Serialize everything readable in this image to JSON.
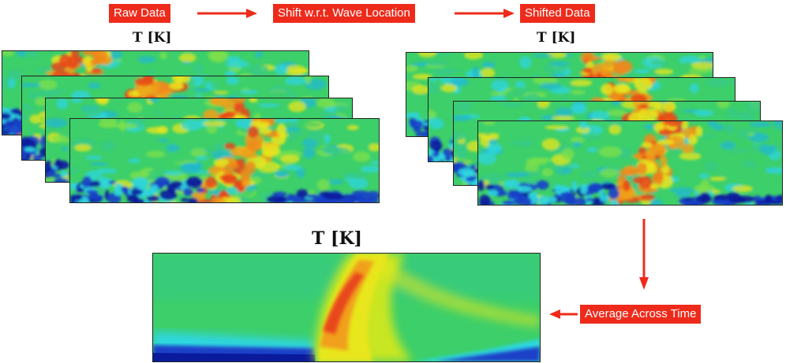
{
  "labels": {
    "raw_data": "Raw Data",
    "shift": "Shift w.r.t. Wave Location",
    "shifted_data": "Shifted Data",
    "average": "Average Across Time"
  },
  "titles": {
    "left_stack": "T [K]",
    "right_stack": "T [K]",
    "average": "T [K]"
  },
  "colors": {
    "label_bg": "#ee2b1b",
    "arrow": "#ee2b1b",
    "cold": "#0a1a9c",
    "cyan": "#2fd6e0",
    "green": "#3ccf6a",
    "yellow": "#e8e61e",
    "orange": "#f08a1a",
    "hot": "#e8461a"
  }
}
